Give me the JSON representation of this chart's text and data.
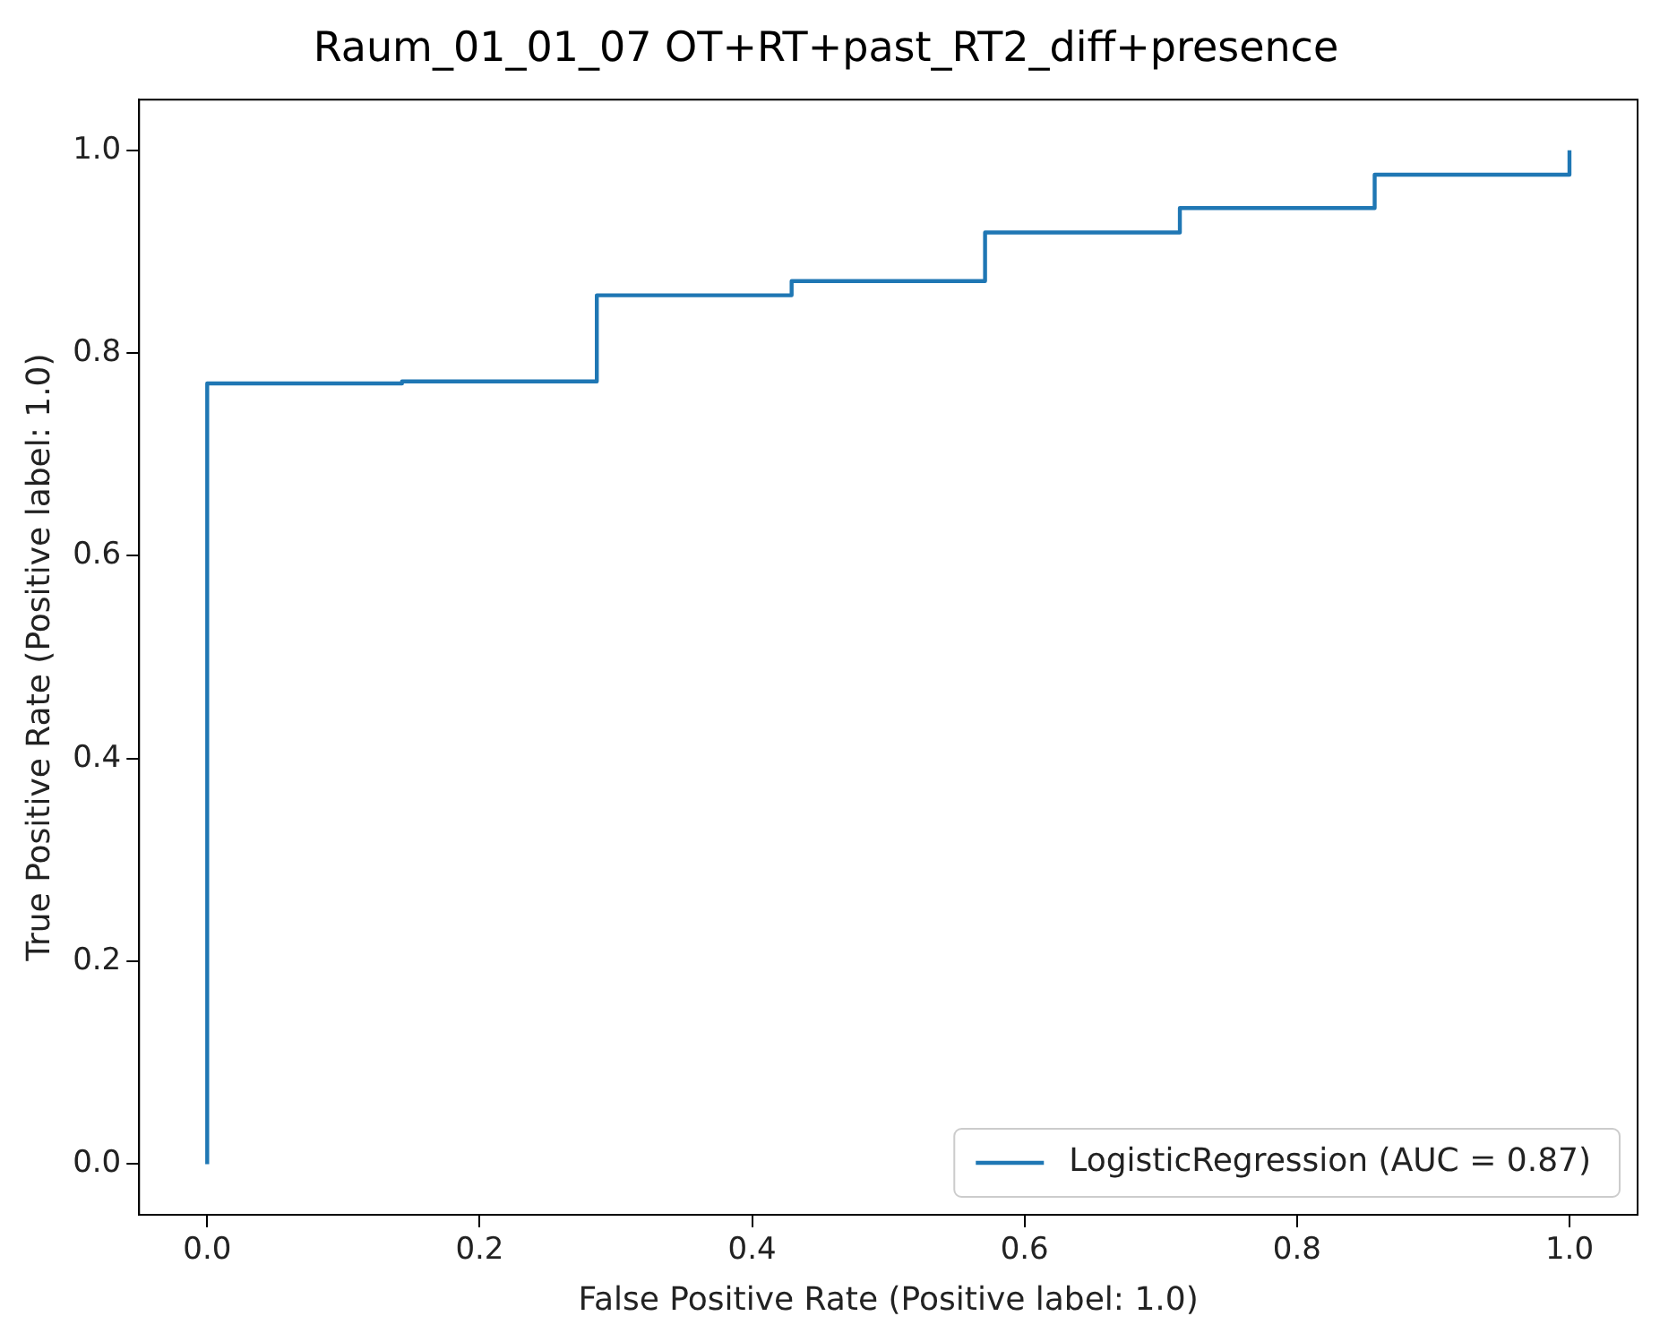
{
  "chart_data": {
    "type": "step",
    "title": "Raum_01_01_07 OT+RT+past_RT2_diff+presence",
    "xlabel": "False Positive Rate (Positive label: 1.0)",
    "ylabel": "True Positive Rate (Positive label: 1.0)",
    "series": [
      {
        "name": "LogisticRegression (AUC = 0.87)",
        "color": "#1f77b4",
        "x": [
          0,
          0,
          0.143,
          0.286,
          0.429,
          0.571,
          0.714,
          0.857,
          1.0
        ],
        "values": [
          0,
          0.77,
          0.772,
          0.857,
          0.871,
          0.919,
          0.943,
          0.976,
          1.0
        ]
      }
    ],
    "xlim": [
      -0.05,
      1.05
    ],
    "ylim": [
      -0.05,
      1.05
    ],
    "xticks": [
      {
        "value": 0,
        "label": "0.0"
      },
      0.2,
      0.4,
      0.6,
      0.8,
      {
        "value": 1,
        "label": "1.0"
      }
    ],
    "yticks": [
      {
        "value": 0,
        "label": "0.0"
      },
      0.2,
      0.4,
      0.6,
      0.8,
      {
        "value": 1,
        "label": "1.0"
      }
    ],
    "grid": false,
    "legend": "bottom right",
    "marker": "none",
    "line_style": "solid"
  }
}
